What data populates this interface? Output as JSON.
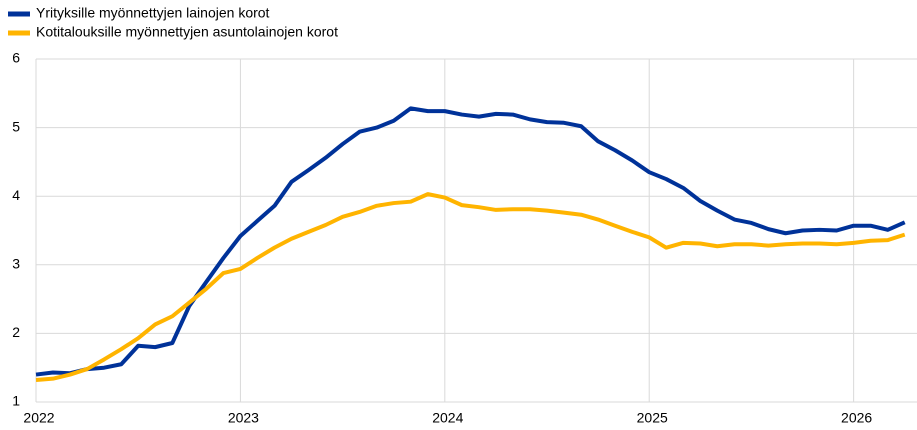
{
  "chart_data": {
    "type": "line",
    "x": [
      2022,
      2022.083,
      2022.167,
      2022.25,
      2022.333,
      2022.417,
      2022.5,
      2022.583,
      2022.667,
      2022.75,
      2022.833,
      2022.917,
      2023,
      2023.083,
      2023.167,
      2023.25,
      2023.333,
      2023.417,
      2023.5,
      2023.583,
      2023.667,
      2023.75,
      2023.833,
      2023.917,
      2024,
      2024.083,
      2024.167,
      2024.25,
      2024.333,
      2024.417,
      2024.5,
      2024.583,
      2024.667,
      2024.75,
      2024.833,
      2024.917,
      2025,
      2025.083,
      2025.167,
      2025.25,
      2025.333,
      2025.417,
      2025.5,
      2025.583,
      2025.667,
      2025.75,
      2025.833,
      2025.917,
      2026,
      2026.083,
      2026.167,
      2026.25
    ],
    "series": [
      {
        "name": "Yrityksille myönnettyjen lainojen korot",
        "color": "#003299",
        "values": [
          1.4,
          1.43,
          1.42,
          1.48,
          1.5,
          1.55,
          1.82,
          1.8,
          1.86,
          2.4,
          2.75,
          3.1,
          3.42,
          3.64,
          3.86,
          4.21,
          4.38,
          4.56,
          4.76,
          4.94,
          5.0,
          5.1,
          5.28,
          5.24,
          5.24,
          5.19,
          5.16,
          5.2,
          5.19,
          5.12,
          5.08,
          5.07,
          5.02,
          4.8,
          4.67,
          4.52,
          4.35,
          4.25,
          4.12,
          3.93,
          3.79,
          3.66,
          3.61,
          3.52,
          3.46,
          3.5,
          3.51,
          3.5,
          3.57,
          3.57,
          3.51,
          3.62
        ]
      },
      {
        "name": "Kotitalouksille myönnettyjen asuntolainojen korot",
        "color": "#ffb400",
        "values": [
          1.32,
          1.34,
          1.4,
          1.48,
          1.62,
          1.77,
          1.93,
          2.13,
          2.25,
          2.45,
          2.65,
          2.88,
          2.94,
          3.1,
          3.25,
          3.38,
          3.48,
          3.58,
          3.7,
          3.77,
          3.86,
          3.9,
          3.92,
          4.03,
          3.98,
          3.87,
          3.84,
          3.8,
          3.81,
          3.81,
          3.79,
          3.76,
          3.73,
          3.66,
          3.57,
          3.48,
          3.4,
          3.25,
          3.32,
          3.31,
          3.27,
          3.3,
          3.3,
          3.28,
          3.3,
          3.31,
          3.31,
          3.3,
          3.32,
          3.35,
          3.36,
          3.44
        ]
      }
    ],
    "xlim": [
      2022,
      2026.31
    ],
    "xticks": [
      2022,
      2023,
      2024,
      2025,
      2026
    ],
    "ylim": [
      1,
      6
    ],
    "yticks": [
      1,
      2,
      3,
      4,
      5,
      6
    ],
    "grid": true
  }
}
